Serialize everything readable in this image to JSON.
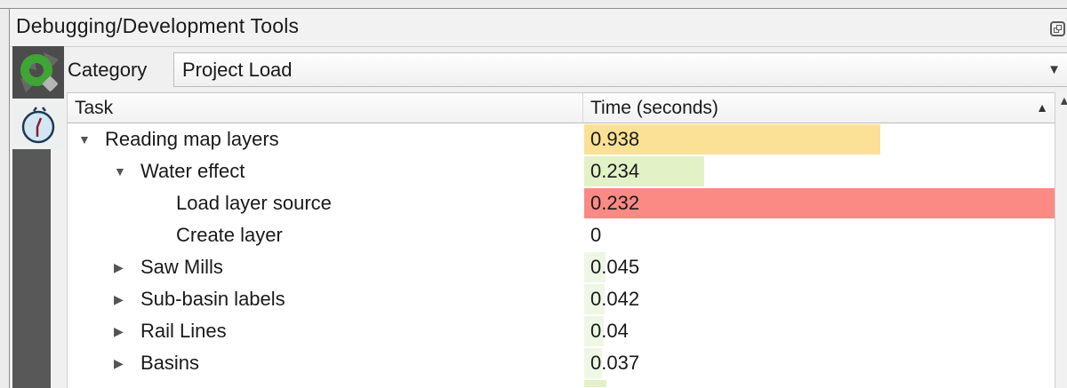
{
  "panel": {
    "title": "Debugging/Development Tools"
  },
  "icons": {
    "expanded": "▼",
    "collapsed": "▶",
    "dropdown": "▼",
    "sort_ascending": "▲",
    "scroll_up": "▲"
  },
  "colors": {
    "bar_orange": "#fbe195",
    "bar_green": "#e3f2c6",
    "bar_green_faint": "#eef7e6",
    "bar_red": "#fc8a84",
    "accent_green": "#3fa535"
  },
  "sidebar": {
    "tabs": [
      {
        "id": "debugging-tools",
        "active": false
      },
      {
        "id": "profiler-stopwatch",
        "active": true
      }
    ]
  },
  "toolbar": {
    "category_label": "Category",
    "category_value": "Project Load"
  },
  "table": {
    "columns": [
      {
        "label": "Task"
      },
      {
        "label": "Time (seconds)",
        "sorted": "ascending"
      }
    ],
    "rows": [
      {
        "task": "Reading map layers",
        "time": "0.938",
        "level": 0,
        "expanded": true,
        "bar_pct": 62.8,
        "bar_color": "#fbe195"
      },
      {
        "task": "Water effect",
        "time": "0.234",
        "level": 1,
        "expanded": true,
        "bar_pct": 25.5,
        "bar_color": "#e3f2c6"
      },
      {
        "task": "Load layer source",
        "time": "0.232",
        "level": 2,
        "bar_pct": 100,
        "bar_color": "#fc8a84"
      },
      {
        "task": "Create layer",
        "time": "0",
        "level": 2,
        "bar_pct": 0,
        "bar_color": ""
      },
      {
        "task": "Saw Mills",
        "time": "0.045",
        "level": 1,
        "expanded": false,
        "bar_pct": 4.6,
        "bar_color": "#eef7e6"
      },
      {
        "task": "Sub-basin labels",
        "time": "0.042",
        "level": 1,
        "expanded": false,
        "bar_pct": 4.3,
        "bar_color": "#eef7e6"
      },
      {
        "task": "Rail Lines",
        "time": "0.04",
        "level": 1,
        "expanded": false,
        "bar_pct": 4.1,
        "bar_color": "#eef7e6"
      },
      {
        "task": "Basins",
        "time": "0.037",
        "level": 1,
        "expanded": false,
        "bar_pct": 3.8,
        "bar_color": "#eef7e6"
      },
      {
        "task": "",
        "time": "",
        "level": 1,
        "partial": true,
        "bar_pct": 4.8,
        "bar_color": "#e3f2c6"
      }
    ]
  }
}
